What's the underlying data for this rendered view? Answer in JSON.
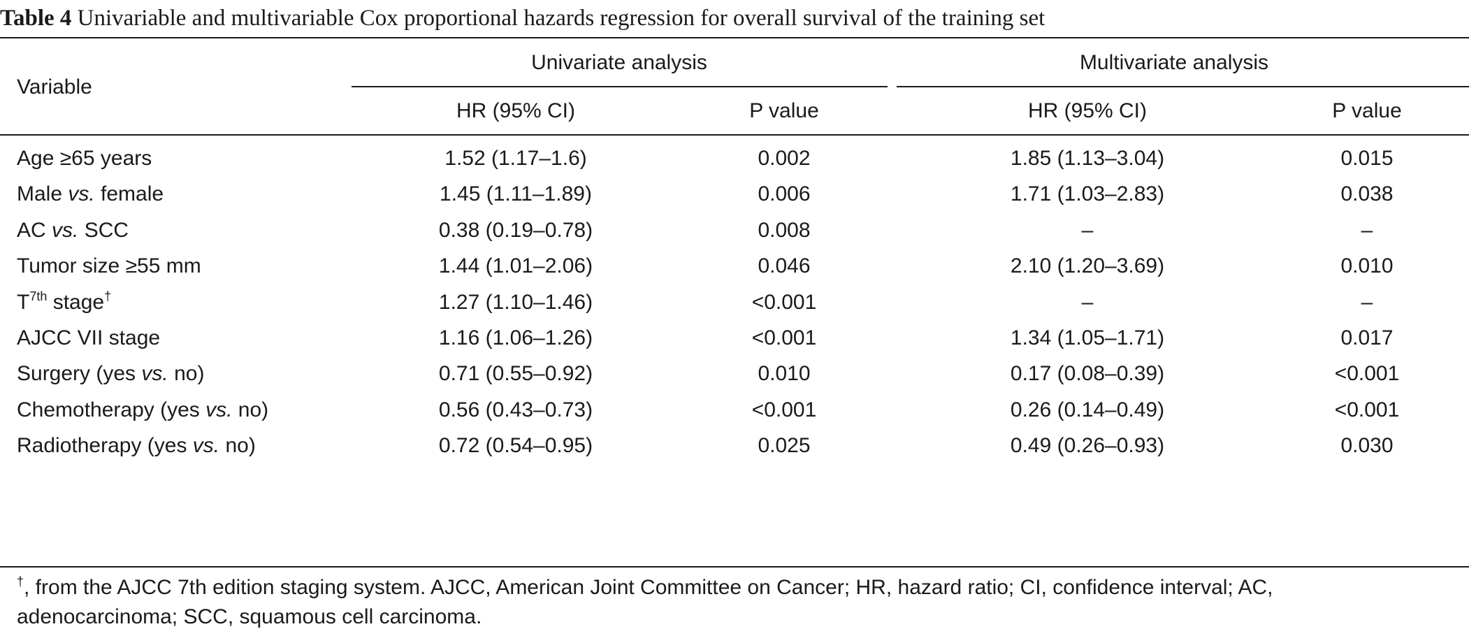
{
  "caption": {
    "label": "Table 4",
    "text": "Univariable and multivariable Cox proportional hazards regression for overall survival of the training set"
  },
  "header": {
    "variable": "Variable",
    "univariate": "Univariate analysis",
    "multivariate": "Multivariate analysis",
    "hr_ci": "HR (95% CI)",
    "p_value": "P value"
  },
  "rows": [
    {
      "label_pre": "Age ≥65 years",
      "label_ital": "",
      "label_post": "",
      "label_sup": "",
      "label_sup_post": "",
      "uni_hr": "1.52 (1.17–1.6)",
      "uni_p": "0.002",
      "multi_hr": "1.85 (1.13–3.04)",
      "multi_p": "0.015"
    },
    {
      "label_pre": "Male ",
      "label_ital": "vs.",
      "label_post": " female",
      "label_sup": "",
      "label_sup_post": "",
      "uni_hr": "1.45 (1.11–1.89)",
      "uni_p": "0.006",
      "multi_hr": "1.71 (1.03–2.83)",
      "multi_p": "0.038"
    },
    {
      "label_pre": "AC ",
      "label_ital": "vs.",
      "label_post": " SCC",
      "label_sup": "",
      "label_sup_post": "",
      "uni_hr": "0.38 (0.19–0.78)",
      "uni_p": "0.008",
      "multi_hr": "–",
      "multi_p": "–"
    },
    {
      "label_pre": "Tumor size ≥55 mm",
      "label_ital": "",
      "label_post": "",
      "label_sup": "",
      "label_sup_post": "",
      "uni_hr": "1.44 (1.01–2.06)",
      "uni_p": "0.046",
      "multi_hr": "2.10 (1.20–3.69)",
      "multi_p": "0.010"
    },
    {
      "label_pre": "T",
      "label_ital": "",
      "label_post": "",
      "label_sup": "7th",
      "label_sup_post": " stage",
      "label_sup2": "†",
      "uni_hr": "1.27 (1.10–1.46)",
      "uni_p": "<0.001",
      "multi_hr": "–",
      "multi_p": "–"
    },
    {
      "label_pre": "AJCC VII stage",
      "label_ital": "",
      "label_post": "",
      "label_sup": "",
      "label_sup_post": "",
      "uni_hr": "1.16 (1.06–1.26)",
      "uni_p": "<0.001",
      "multi_hr": "1.34 (1.05–1.71)",
      "multi_p": "0.017"
    },
    {
      "label_pre": "Surgery (yes ",
      "label_ital": "vs.",
      "label_post": " no)",
      "label_sup": "",
      "label_sup_post": "",
      "uni_hr": "0.71 (0.55–0.92)",
      "uni_p": "0.010",
      "multi_hr": "0.17 (0.08–0.39)",
      "multi_p": "<0.001"
    },
    {
      "label_pre": "Chemotherapy (yes ",
      "label_ital": "vs.",
      "label_post": " no)",
      "label_sup": "",
      "label_sup_post": "",
      "uni_hr": "0.56 (0.43–0.73)",
      "uni_p": "<0.001",
      "multi_hr": "0.26 (0.14–0.49)",
      "multi_p": "<0.001"
    },
    {
      "label_pre": "Radiotherapy (yes ",
      "label_ital": "vs.",
      "label_post": " no)",
      "label_sup": "",
      "label_sup_post": "",
      "uni_hr": "0.72 (0.54–0.95)",
      "uni_p": "0.025",
      "multi_hr": "0.49 (0.26–0.93)",
      "multi_p": "0.030"
    }
  ],
  "footnote": {
    "mark": "†",
    "line1": ", from the AJCC 7th edition staging system. AJCC, American Joint Committee on Cancer; HR, hazard ratio; CI, confidence interval; AC,",
    "line2": "adenocarcinoma; SCC, squamous cell carcinoma."
  }
}
